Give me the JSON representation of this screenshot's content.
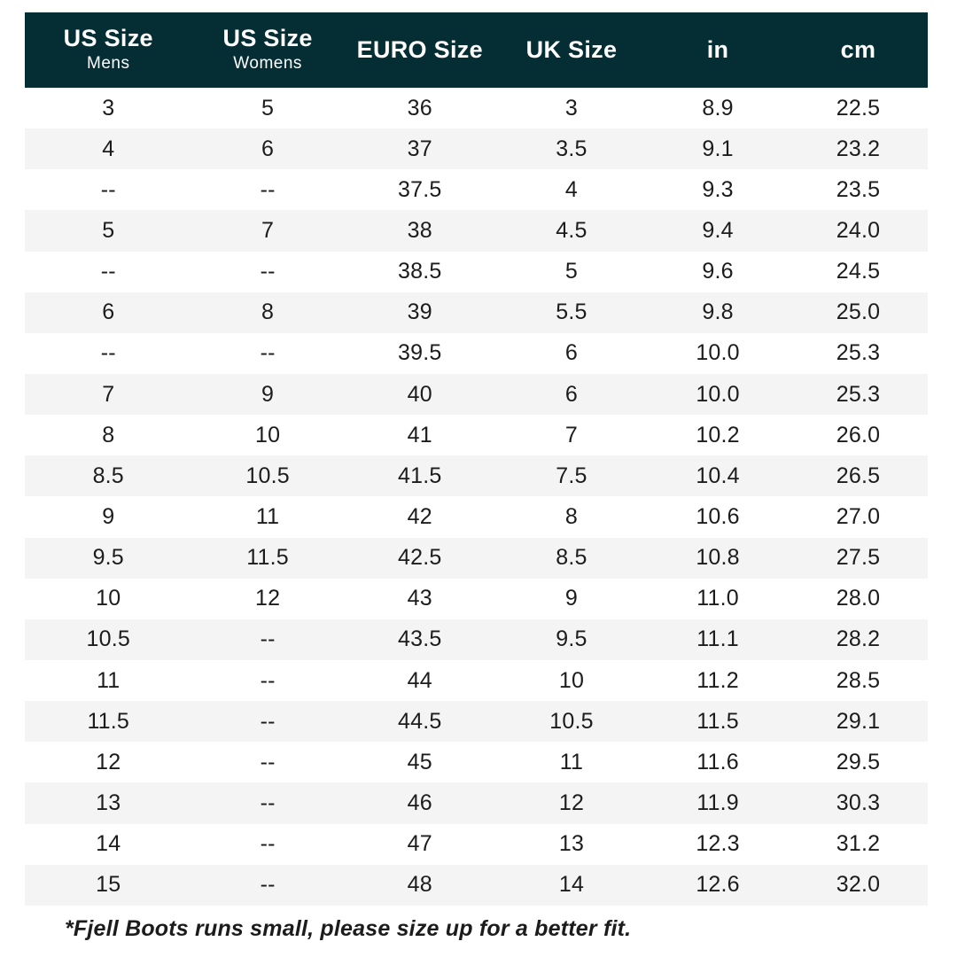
{
  "colors": {
    "header_bg": "#052e34",
    "header_text": "#ffffff",
    "row_alt_bg": "#f4f4f4",
    "body_text": "#1c1c1c"
  },
  "footnote": "*Fjell Boots runs small, please size up for a better fit.",
  "chart_data": {
    "type": "table",
    "title": "",
    "columns": [
      {
        "title": "US Size",
        "subtitle": "Mens"
      },
      {
        "title": "US Size",
        "subtitle": "Womens"
      },
      {
        "title": "EURO Size",
        "subtitle": ""
      },
      {
        "title": "UK Size",
        "subtitle": ""
      },
      {
        "title": "in",
        "subtitle": ""
      },
      {
        "title": "cm",
        "subtitle": ""
      }
    ],
    "rows": [
      [
        "3",
        "5",
        "36",
        "3",
        "8.9",
        "22.5"
      ],
      [
        "4",
        "6",
        "37",
        "3.5",
        "9.1",
        "23.2"
      ],
      [
        "--",
        "--",
        "37.5",
        "4",
        "9.3",
        "23.5"
      ],
      [
        "5",
        "7",
        "38",
        "4.5",
        "9.4",
        "24.0"
      ],
      [
        "--",
        "--",
        "38.5",
        "5",
        "9.6",
        "24.5"
      ],
      [
        "6",
        "8",
        "39",
        "5.5",
        "9.8",
        "25.0"
      ],
      [
        "--",
        "--",
        "39.5",
        "6",
        "10.0",
        "25.3"
      ],
      [
        "7",
        "9",
        "40",
        "6",
        "10.0",
        "25.3"
      ],
      [
        "8",
        "10",
        "41",
        "7",
        "10.2",
        "26.0"
      ],
      [
        "8.5",
        "10.5",
        "41.5",
        "7.5",
        "10.4",
        "26.5"
      ],
      [
        "9",
        "11",
        "42",
        "8",
        "10.6",
        "27.0"
      ],
      [
        "9.5",
        "11.5",
        "42.5",
        "8.5",
        "10.8",
        "27.5"
      ],
      [
        "10",
        "12",
        "43",
        "9",
        "11.0",
        "28.0"
      ],
      [
        "10.5",
        "--",
        "43.5",
        "9.5",
        "11.1",
        "28.2"
      ],
      [
        "11",
        "--",
        "44",
        "10",
        "11.2",
        "28.5"
      ],
      [
        "11.5",
        "--",
        "44.5",
        "10.5",
        "11.5",
        "29.1"
      ],
      [
        "12",
        "--",
        "45",
        "11",
        "11.6",
        "29.5"
      ],
      [
        "13",
        "--",
        "46",
        "12",
        "11.9",
        "30.3"
      ],
      [
        "14",
        "--",
        "47",
        "13",
        "12.3",
        "31.2"
      ],
      [
        "15",
        "--",
        "48",
        "14",
        "12.6",
        "32.0"
      ]
    ]
  }
}
